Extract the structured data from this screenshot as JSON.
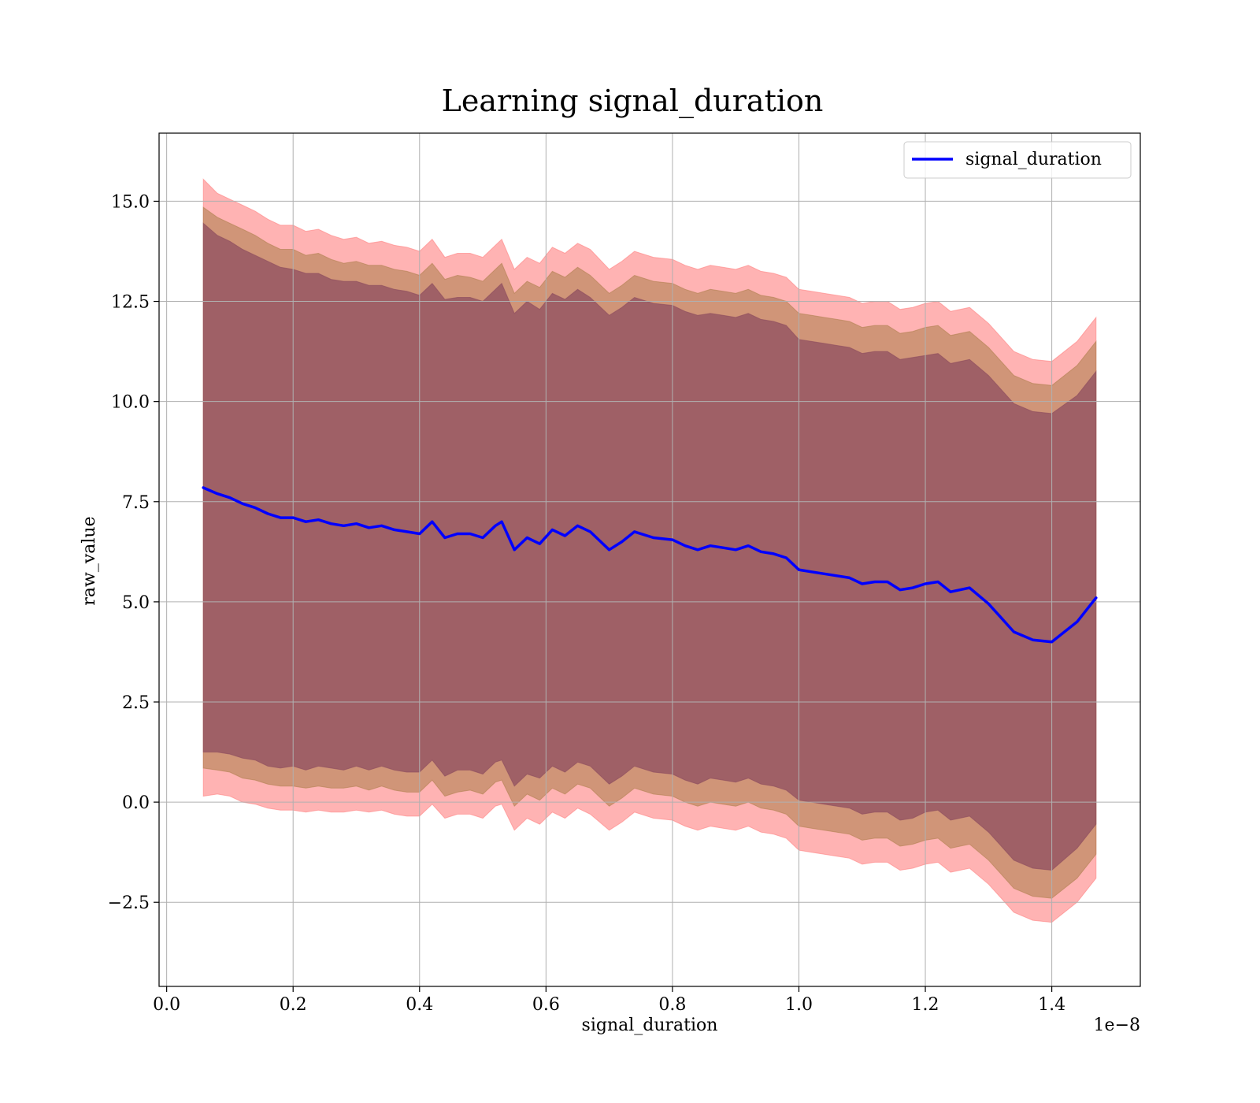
{
  "chart_data": {
    "type": "line",
    "title": "Learning signal_duration",
    "xlabel": "signal_duration",
    "ylabel": "raw_value",
    "x_offset_label": "1e−8",
    "xlim": [
      -0.012,
      1.54
    ],
    "ylim": [
      -4.6,
      16.7
    ],
    "x_ticks": [
      0.0,
      0.2,
      0.4,
      0.6,
      0.8,
      1.0,
      1.2,
      1.4
    ],
    "x_tick_labels": [
      "0.0",
      "0.2",
      "0.4",
      "0.6",
      "0.8",
      "1.0",
      "1.2",
      "1.4"
    ],
    "y_ticks": [
      -2.5,
      0.0,
      2.5,
      5.0,
      7.5,
      10.0,
      12.5,
      15.0
    ],
    "y_tick_labels": [
      "−2.5",
      "0.0",
      "2.5",
      "5.0",
      "7.5",
      "10.0",
      "12.5",
      "15.0"
    ],
    "grid": true,
    "legend_position": "top-right",
    "series": [
      {
        "name": "signal_duration",
        "color": "#0000ff",
        "x": [
          0.058,
          0.08,
          0.1,
          0.12,
          0.14,
          0.16,
          0.18,
          0.2,
          0.22,
          0.24,
          0.26,
          0.28,
          0.3,
          0.32,
          0.34,
          0.36,
          0.38,
          0.4,
          0.42,
          0.44,
          0.46,
          0.48,
          0.5,
          0.52,
          0.53,
          0.55,
          0.57,
          0.59,
          0.61,
          0.63,
          0.65,
          0.67,
          0.7,
          0.72,
          0.74,
          0.77,
          0.8,
          0.82,
          0.84,
          0.86,
          0.88,
          0.9,
          0.92,
          0.94,
          0.96,
          0.98,
          1.0,
          1.02,
          1.04,
          1.06,
          1.08,
          1.1,
          1.12,
          1.14,
          1.16,
          1.18,
          1.2,
          1.22,
          1.24,
          1.27,
          1.3,
          1.32,
          1.34,
          1.37,
          1.4,
          1.44,
          1.47
        ],
        "y": [
          7.85,
          7.7,
          7.6,
          7.45,
          7.35,
          7.2,
          7.1,
          7.1,
          7.0,
          7.05,
          6.95,
          6.9,
          6.95,
          6.85,
          6.9,
          6.8,
          6.75,
          6.7,
          7.0,
          6.6,
          6.7,
          6.7,
          6.6,
          6.9,
          7.0,
          6.3,
          6.6,
          6.45,
          6.8,
          6.65,
          6.9,
          6.75,
          6.3,
          6.5,
          6.75,
          6.6,
          6.55,
          6.4,
          6.3,
          6.4,
          6.35,
          6.3,
          6.4,
          6.25,
          6.2,
          6.1,
          5.8,
          5.75,
          5.7,
          5.65,
          5.6,
          5.45,
          5.5,
          5.5,
          5.3,
          5.35,
          5.45,
          5.5,
          5.25,
          5.35,
          4.95,
          4.6,
          4.25,
          4.05,
          4.0,
          4.5,
          5.1
        ]
      }
    ],
    "bands": [
      {
        "color": "#ff8080",
        "opacity": 0.6,
        "half_width": [
          7.7,
          7.5,
          7.45,
          7.45,
          7.4,
          7.35,
          7.3,
          7.3,
          7.25,
          7.25,
          7.2,
          7.15,
          7.15,
          7.1,
          7.1,
          7.1,
          7.1,
          7.05,
          7.05,
          7.0,
          7.0,
          7.0,
          7.0,
          7.0,
          7.05,
          7.0,
          7.0,
          7.0,
          7.05,
          7.05,
          7.05,
          7.05,
          7.0,
          7.0,
          7.0,
          7.0,
          7.0,
          7.0,
          7.0,
          7.0,
          7.0,
          7.0,
          7.0,
          7.0,
          7.0,
          7.0,
          7.0,
          7.0,
          7.0,
          7.0,
          7.0,
          7.0,
          7.0,
          7.0,
          7.0,
          7.0,
          7.0,
          7.0,
          7.0,
          7.0,
          7.0,
          7.0,
          7.0,
          7.0,
          7.0,
          7.0,
          7.0
        ]
      },
      {
        "color": "#b08050",
        "opacity": 0.6,
        "half_width": [
          7.0,
          6.9,
          6.85,
          6.85,
          6.8,
          6.75,
          6.7,
          6.7,
          6.65,
          6.65,
          6.6,
          6.55,
          6.55,
          6.55,
          6.5,
          6.5,
          6.5,
          6.45,
          6.45,
          6.45,
          6.45,
          6.4,
          6.4,
          6.4,
          6.45,
          6.4,
          6.4,
          6.4,
          6.45,
          6.45,
          6.45,
          6.4,
          6.4,
          6.4,
          6.4,
          6.4,
          6.4,
          6.4,
          6.4,
          6.4,
          6.4,
          6.4,
          6.4,
          6.4,
          6.4,
          6.4,
          6.4,
          6.4,
          6.4,
          6.4,
          6.4,
          6.4,
          6.4,
          6.4,
          6.4,
          6.4,
          6.4,
          6.4,
          6.4,
          6.4,
          6.4,
          6.4,
          6.4,
          6.4,
          6.4,
          6.4,
          6.4
        ]
      },
      {
        "color": "#8a4a5e",
        "opacity": 0.7,
        "half_width": [
          6.6,
          6.45,
          6.4,
          6.35,
          6.3,
          6.3,
          6.25,
          6.2,
          6.2,
          6.15,
          6.1,
          6.1,
          6.05,
          6.05,
          6.0,
          6.0,
          6.0,
          5.95,
          5.95,
          5.95,
          5.9,
          5.9,
          5.9,
          5.9,
          5.95,
          5.9,
          5.9,
          5.85,
          5.9,
          5.9,
          5.9,
          5.85,
          5.85,
          5.85,
          5.85,
          5.85,
          5.85,
          5.85,
          5.85,
          5.8,
          5.8,
          5.8,
          5.8,
          5.8,
          5.8,
          5.8,
          5.75,
          5.75,
          5.75,
          5.75,
          5.75,
          5.75,
          5.75,
          5.75,
          5.75,
          5.75,
          5.7,
          5.7,
          5.7,
          5.7,
          5.7,
          5.7,
          5.7,
          5.7,
          5.7,
          5.65,
          5.65
        ]
      }
    ]
  }
}
